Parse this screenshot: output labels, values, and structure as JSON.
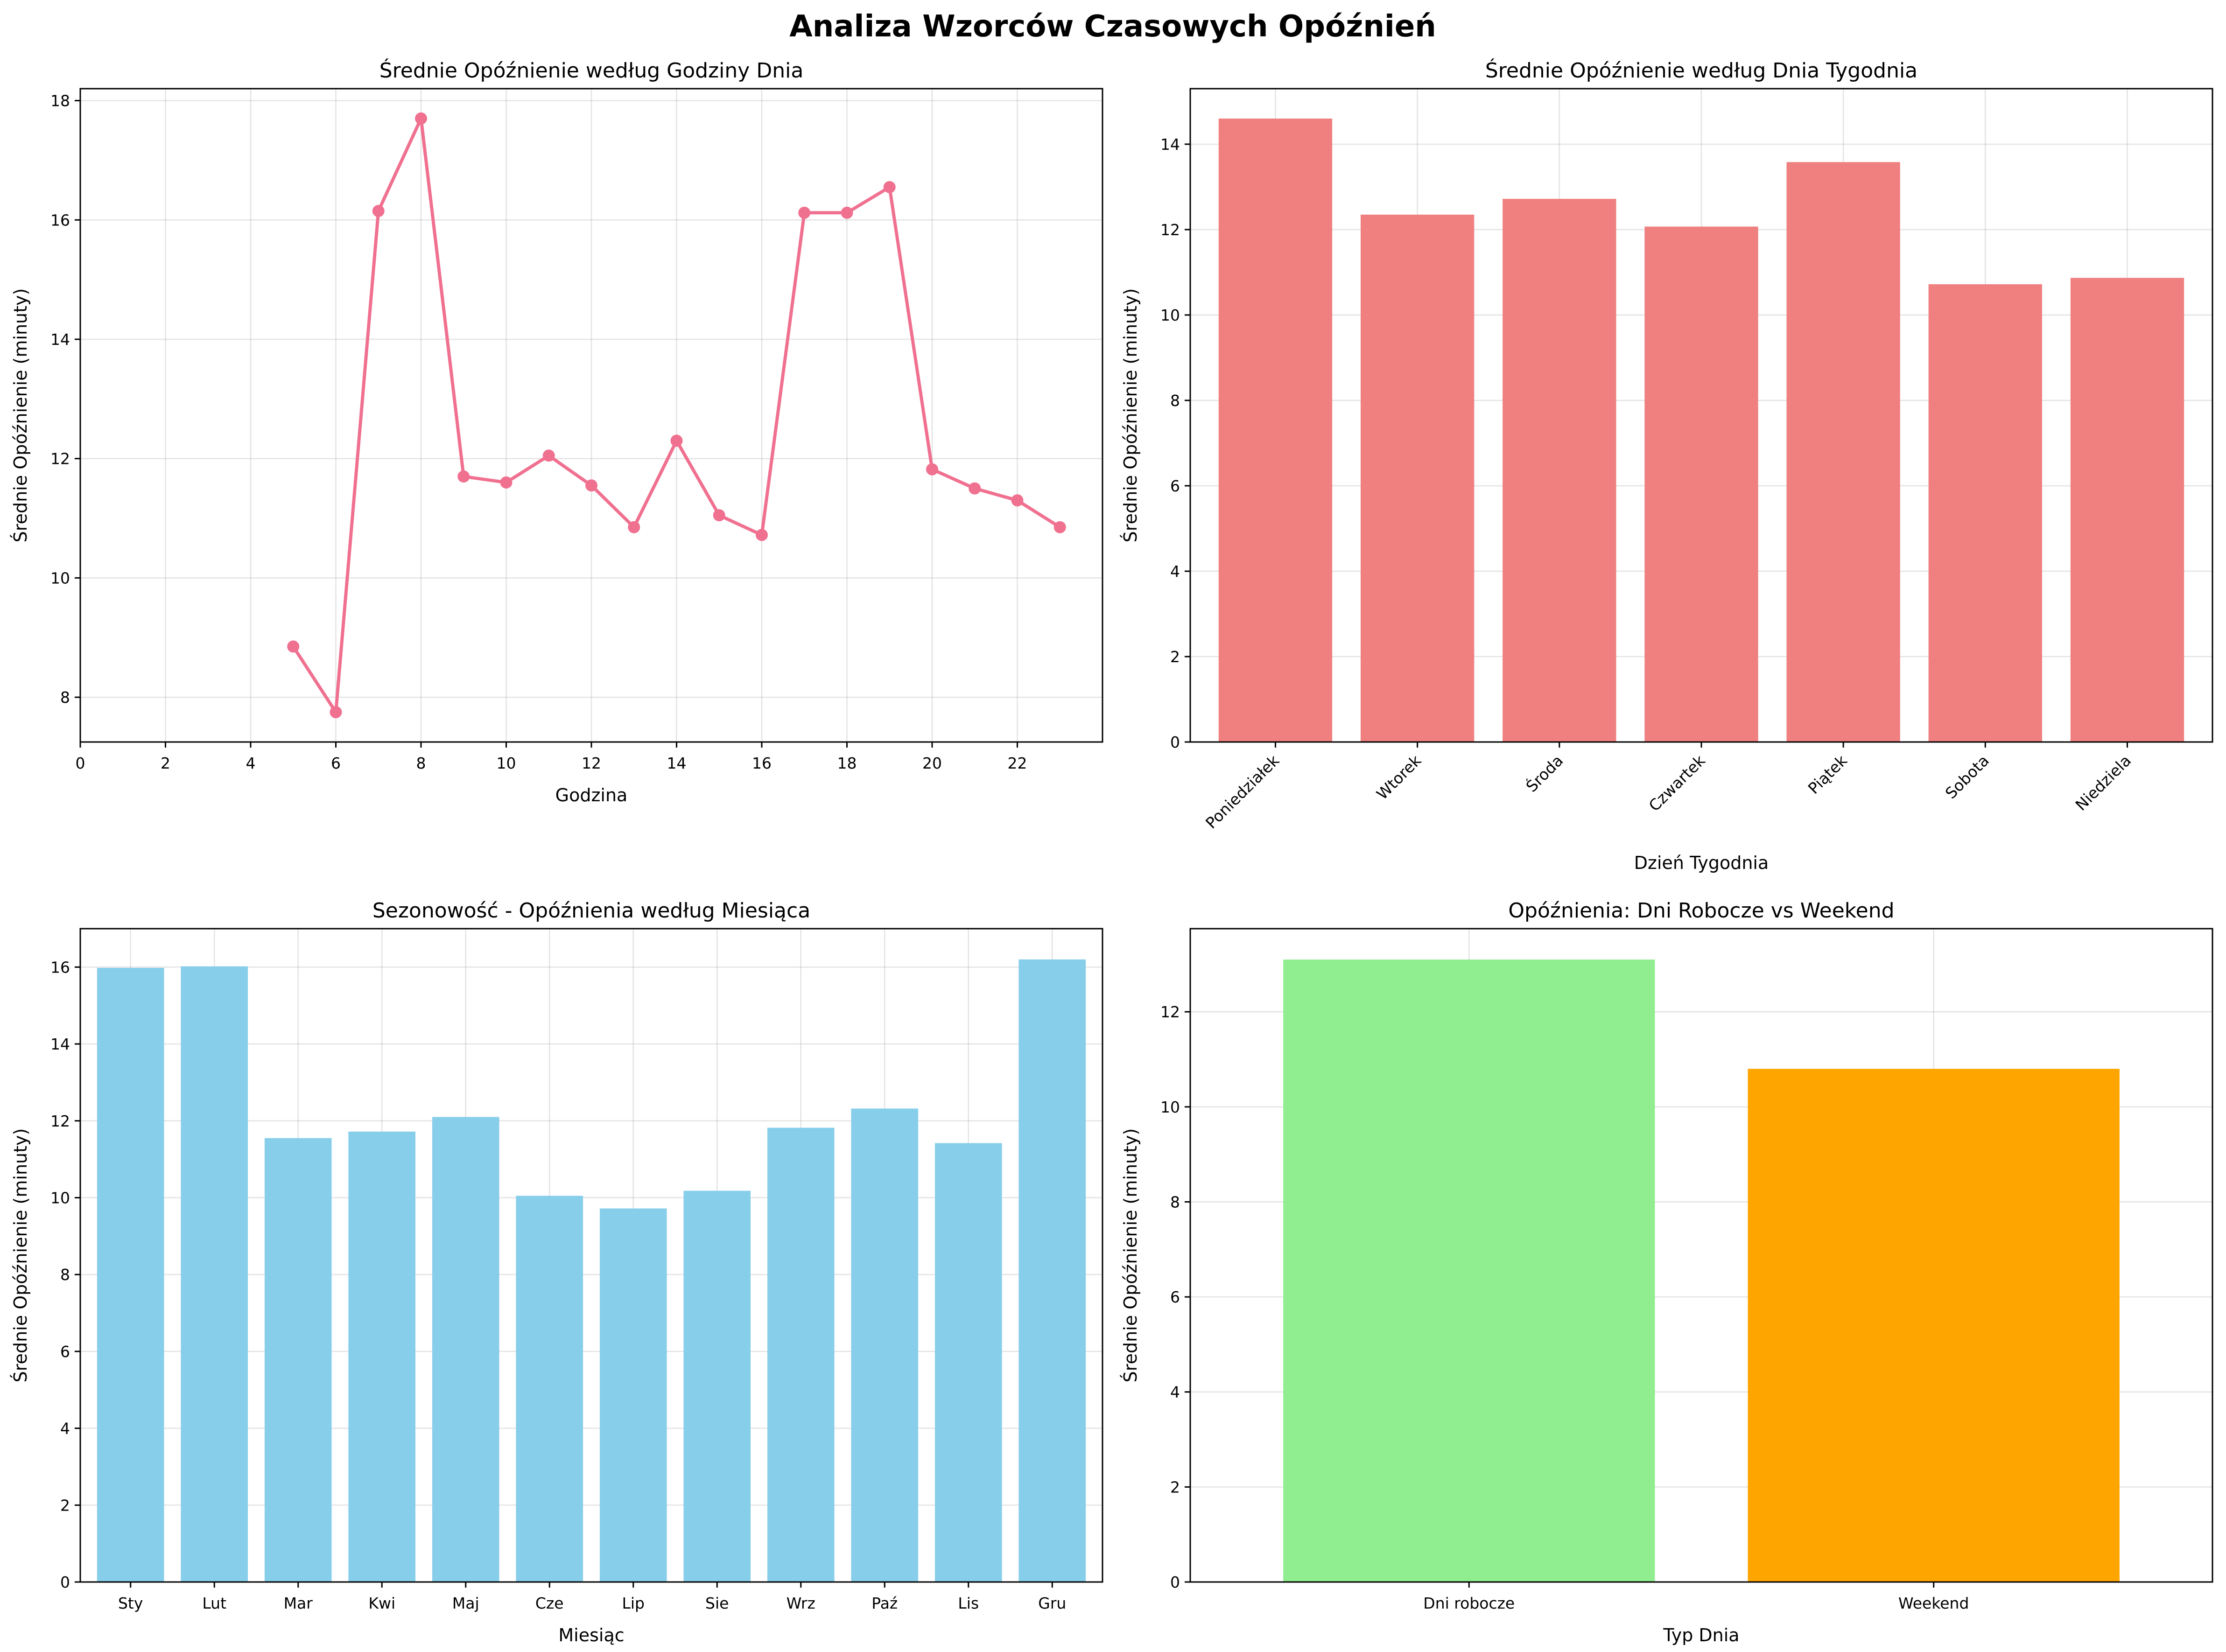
{
  "figure": {
    "title": "Analiza Wzorców Czasowych Opóźnień"
  },
  "chart_data": [
    {
      "type": "line",
      "title": "Średnie Opóźnienie według Godziny Dnia",
      "xlabel": "Godzina",
      "ylabel": "Średnie Opóźnienie (minuty)",
      "xlim": [
        0,
        24
      ],
      "ylim": [
        7.25,
        18.2
      ],
      "xticks": [
        0,
        2,
        4,
        6,
        8,
        10,
        12,
        14,
        16,
        18,
        20,
        22
      ],
      "yticks": [
        8,
        10,
        12,
        14,
        16,
        18
      ],
      "grid": true,
      "color": "#f07090",
      "series": [
        {
          "x": [
            5,
            6,
            7,
            8,
            9,
            10,
            11,
            12,
            13,
            14,
            15,
            16,
            17,
            18,
            19,
            20,
            21,
            22,
            23
          ],
          "values": [
            8.85,
            7.75,
            16.15,
            17.7,
            11.7,
            11.6,
            12.05,
            11.55,
            10.85,
            12.3,
            11.05,
            10.72,
            16.12,
            16.12,
            16.55,
            11.82,
            11.5,
            11.3,
            10.85
          ]
        }
      ]
    },
    {
      "type": "bar",
      "title": "Średnie Opóźnienie według Dnia Tygodnia",
      "xlabel": "Dzień Tygodnia",
      "ylabel": "Średnie Opóźnienie (minuty)",
      "ylim": [
        0,
        15.3
      ],
      "yticks": [
        0,
        2,
        4,
        6,
        8,
        10,
        12,
        14
      ],
      "grid": true,
      "tick_rotation": 45,
      "color": "#f08080",
      "categories": [
        "Poniedziałek",
        "Wtorek",
        "Środa",
        "Czwartek",
        "Piątek",
        "Sobota",
        "Niedziela"
      ],
      "values": [
        14.6,
        12.35,
        12.72,
        12.07,
        13.58,
        10.72,
        10.87
      ]
    },
    {
      "type": "bar",
      "title": "Sezonowość - Opóźnienia według Miesiąca",
      "xlabel": "Miesiąc",
      "ylabel": "Średnie Opóźnienie (minuty)",
      "ylim": [
        0,
        17.0
      ],
      "yticks": [
        0,
        2,
        4,
        6,
        8,
        10,
        12,
        14,
        16
      ],
      "grid": true,
      "color": "#87ceeb",
      "categories": [
        "Sty",
        "Lut",
        "Mar",
        "Kwi",
        "Maj",
        "Cze",
        "Lip",
        "Sie",
        "Wrz",
        "Paź",
        "Lis",
        "Gru"
      ],
      "values": [
        15.98,
        16.02,
        11.55,
        11.72,
        12.1,
        10.05,
        9.72,
        10.18,
        11.82,
        12.32,
        11.42,
        16.2
      ]
    },
    {
      "type": "bar",
      "title": "Opóźnienia: Dni Robocze vs Weekend",
      "xlabel": "Typ Dnia",
      "ylabel": "Średnie Opóźnienie (minuty)",
      "ylim": [
        0,
        13.75
      ],
      "yticks": [
        0,
        2,
        4,
        6,
        8,
        10,
        12
      ],
      "grid": true,
      "categories": [
        "Dni robocze",
        "Weekend"
      ],
      "values": [
        13.1,
        10.8
      ],
      "colors": [
        "#90ee90",
        "#ffa500"
      ]
    }
  ]
}
